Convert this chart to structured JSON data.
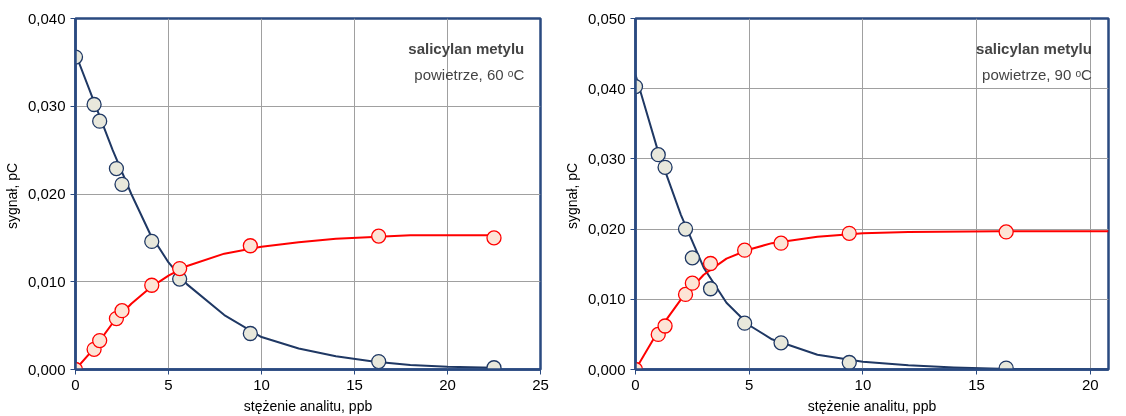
{
  "chart_data": [
    {
      "type": "scatter",
      "xlabel": "stężenie analitu, ppb",
      "ylabel": "sygnał,  pC",
      "annotations": [
        "salicylan metylu",
        "powietrze, 60 ᵒC"
      ],
      "xlim": [
        0,
        25
      ],
      "xticks": [
        0,
        5,
        10,
        15,
        20,
        25
      ],
      "ylim": [
        0,
        0.04
      ],
      "yticks": [
        {
          "value": 0,
          "label": "0,000"
        },
        {
          "value": 0.01,
          "label": "0,010"
        },
        {
          "value": 0.02,
          "label": "0,020"
        },
        {
          "value": 0.03,
          "label": "0,030"
        },
        {
          "value": 0.04,
          "label": "0,040"
        }
      ],
      "grid": true,
      "marker": "circle",
      "series": [
        {
          "type": "line",
          "marker": "none",
          "color": "#1f3864",
          "x": [
            0,
            1,
            2,
            3,
            4,
            5,
            6,
            8,
            10,
            12,
            14,
            16,
            18,
            20,
            22.5
          ],
          "values": [
            0.036,
            0.0305,
            0.025,
            0.02,
            0.0155,
            0.0122,
            0.0097,
            0.0062,
            0.0037,
            0.0024,
            0.0015,
            0.0009,
            0.0005,
            0.0003,
            0.0002
          ]
        },
        {
          "type": "line",
          "marker": "none",
          "color": "#ff0000",
          "x": [
            0,
            1,
            2,
            3,
            4,
            5,
            6,
            8,
            10,
            12,
            14,
            16,
            18,
            20,
            22.5
          ],
          "values": [
            0,
            0.0024,
            0.0053,
            0.0075,
            0.0093,
            0.0107,
            0.0118,
            0.0132,
            0.014,
            0.0145,
            0.0149,
            0.0151,
            0.0153,
            0.0153,
            0.0153
          ]
        },
        {
          "color": "#e8e8dc",
          "x": [
            0,
            1.0,
            1.3,
            2.2,
            2.5,
            4.1,
            5.6,
            9.4,
            16.3,
            22.5
          ],
          "values": [
            0.0356,
            0.0302,
            0.0283,
            0.0229,
            0.0211,
            0.0146,
            0.0103,
            0.0041,
            0.0009,
            0.0002
          ]
        },
        {
          "color": "#fde4d6",
          "x": [
            0,
            1.0,
            1.3,
            2.2,
            2.5,
            4.1,
            5.6,
            9.4,
            16.3,
            22.5
          ],
          "values": [
            0,
            0.0023,
            0.0033,
            0.0058,
            0.0067,
            0.0096,
            0.0115,
            0.0141,
            0.0152,
            0.015
          ]
        }
      ]
    },
    {
      "type": "scatter",
      "xlabel": "stężenie analitu, ppb",
      "ylabel": "sygnał,  pC",
      "annotations": [
        "salicylan metylu",
        "powietrze, 90 ᵒC"
      ],
      "xlim": [
        0,
        20.8
      ],
      "xticks": [
        0,
        5,
        10,
        15,
        20
      ],
      "ylim": [
        0,
        0.05
      ],
      "yticks": [
        {
          "value": 0,
          "label": "0,000"
        },
        {
          "value": 0.01,
          "label": "0,010"
        },
        {
          "value": 0.02,
          "label": "0,020"
        },
        {
          "value": 0.03,
          "label": "0,030"
        },
        {
          "value": 0.04,
          "label": "0,040"
        },
        {
          "value": 0.05,
          "label": "0,050"
        }
      ],
      "grid": true,
      "marker": "circle",
      "series": [
        {
          "type": "line",
          "marker": "none",
          "color": "#1f3864",
          "x": [
            0,
            1,
            2,
            3,
            4,
            5,
            6,
            8,
            10,
            12,
            14,
            16,
            20.8
          ],
          "values": [
            0.042,
            0.031,
            0.022,
            0.0145,
            0.0095,
            0.0063,
            0.0043,
            0.0021,
            0.0011,
            0.0006,
            0.0003,
            0.0001,
            0
          ]
        },
        {
          "type": "line",
          "marker": "none",
          "color": "#ff0000",
          "x": [
            0,
            1,
            2,
            3,
            4,
            5,
            6,
            8,
            10,
            12,
            16,
            20.8
          ],
          "values": [
            0,
            0.0055,
            0.01,
            0.0135,
            0.0158,
            0.0171,
            0.018,
            0.0189,
            0.0194,
            0.0196,
            0.0197,
            0.0197
          ]
        },
        {
          "color": "#e8e8dc",
          "x": [
            0,
            1.0,
            1.3,
            2.2,
            2.5,
            3.3,
            4.8,
            6.4,
            9.4,
            16.3
          ],
          "values": [
            0.0403,
            0.0306,
            0.0288,
            0.02,
            0.0159,
            0.0115,
            0.0066,
            0.0038,
            0.001,
            0.0002
          ]
        },
        {
          "color": "#fde4d6",
          "x": [
            0,
            1.0,
            1.3,
            2.2,
            2.5,
            3.3,
            4.8,
            6.4,
            9.4,
            16.3
          ],
          "values": [
            0,
            0.005,
            0.0062,
            0.0107,
            0.0123,
            0.0151,
            0.017,
            0.018,
            0.0194,
            0.0196
          ]
        }
      ]
    }
  ]
}
